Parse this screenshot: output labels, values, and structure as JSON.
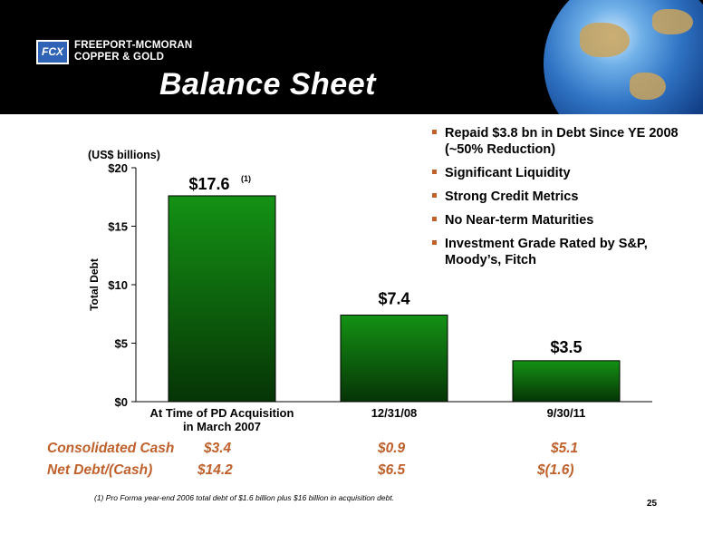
{
  "header": {
    "company_line1": "FREEPORT-MCMORAN",
    "company_line2": "COPPER & GOLD",
    "logo_text": "FCX",
    "title": "Balance Sheet"
  },
  "bullets": [
    "Repaid $3.8 bn in Debt Since YE 2008 (~50% Reduction)",
    "Significant Liquidity",
    "Strong Credit Metrics",
    "No Near-term Maturities",
    "Investment Grade Rated by S&P, Moody’s, Fitch"
  ],
  "chart_data": {
    "type": "bar",
    "unit_label": "(US$ billions)",
    "ylabel": "Total Debt",
    "categories": [
      "At Time of PD Acquisition\nin March 2007",
      "12/31/08",
      "9/30/11"
    ],
    "values": [
      17.6,
      7.4,
      3.5
    ],
    "data_labels": [
      "$17.6",
      "$7.4",
      "$3.5"
    ],
    "data_label_notes": [
      "(1)",
      "",
      ""
    ],
    "ylim": [
      0,
      20
    ],
    "yticks": [
      0,
      5,
      10,
      15,
      20
    ],
    "ytick_labels": [
      "$0",
      "$5",
      "$10",
      "$15",
      "$20"
    ],
    "bar_color_top": "#149214",
    "bar_color_bottom": "#063406"
  },
  "rows": [
    {
      "label": "Consolidated Cash",
      "values": [
        "$3.4",
        "$0.9",
        "$5.1"
      ]
    },
    {
      "label": "Net Debt/(Cash)",
      "values": [
        "$14.2",
        "$6.5",
        "$(1.6)"
      ]
    }
  ],
  "accent_color": "#c0602b",
  "footnote": "(1)  Pro Forma year-end 2006 total debt of $1.6 billion plus $16 billion in acquisition debt.",
  "page_number": "25"
}
